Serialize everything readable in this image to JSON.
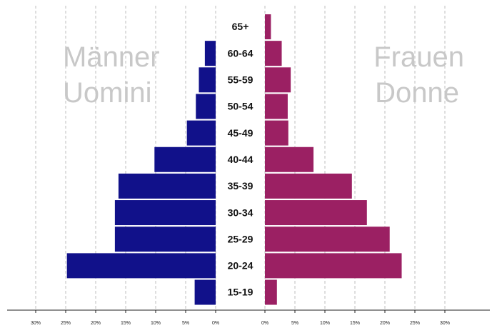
{
  "chart_data": {
    "type": "bar",
    "orientation": "horizontal",
    "categories": [
      "65+",
      "60-64",
      "55-59",
      "50-54",
      "45-49",
      "40-44",
      "35-39",
      "30-34",
      "25-29",
      "20-24",
      "15-19"
    ],
    "series": [
      {
        "name": "Männer",
        "values": [
          0,
          1.8,
          2.8,
          3.3,
          4.8,
          10.2,
          16.2,
          16.8,
          16.8,
          24.8,
          3.5
        ],
        "color": "#11118a"
      },
      {
        "name": "Frauen",
        "values": [
          1.0,
          2.8,
          4.3,
          3.8,
          3.9,
          8.1,
          14.5,
          17.0,
          20.8,
          22.8,
          2.0
        ],
        "color": "#9b2063"
      }
    ],
    "side_labels": {
      "left": [
        "Männer",
        "Uomini"
      ],
      "right": [
        "Frauen",
        "Donne"
      ]
    },
    "xlim": [
      0,
      30
    ],
    "tick_values": [
      0,
      5,
      10,
      15,
      20,
      25,
      30
    ],
    "tick_labels": [
      "0%",
      "5%",
      "10%",
      "15%",
      "20%",
      "25%",
      "30%"
    ],
    "grid": true,
    "grid_style": "dashed vertical"
  }
}
